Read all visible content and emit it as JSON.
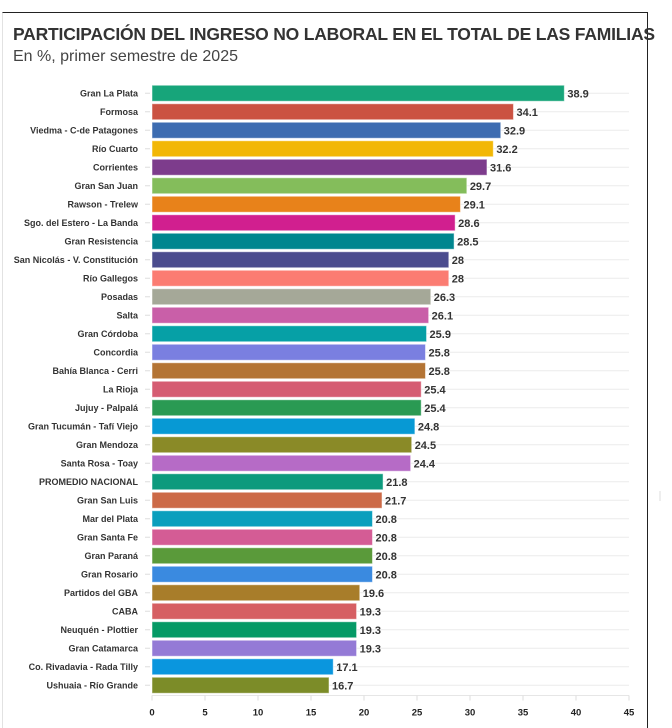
{
  "chart_data": {
    "type": "bar",
    "orientation": "horizontal",
    "title": "PARTICIPACIÓN DEL INGRESO NO LABORAL EN EL TOTAL DE LAS FAMILIAS",
    "subtitle": "En %, primer semestre de 2025",
    "xlabel": "",
    "ylabel": "",
    "xlim": [
      0,
      45
    ],
    "xticks": [
      0,
      5,
      10,
      15,
      20,
      25,
      30,
      35,
      40,
      45
    ],
    "grid": true,
    "legend": "none",
    "categories": [
      "Gran La Plata",
      "Formosa",
      "Viedma - C-de Patagones",
      "Río Cuarto",
      "Corrientes",
      "Gran San Juan",
      "Rawson - Trelew",
      "Sgo. del Estero - La Banda",
      "Gran Resistencia",
      "San Nicolás - V. Constitución",
      "Río Gallegos",
      "Posadas",
      "Salta",
      "Gran Córdoba",
      "Concordia",
      "Bahía Blanca - Cerri",
      "La Rioja",
      "Jujuy - Palpalá",
      "Gran Tucumán - Tafí Viejo",
      "Gran Mendoza",
      "Santa Rosa - Toay",
      "PROMEDIO NACIONAL",
      "Gran San Luis",
      "Mar del Plata",
      "Gran Santa Fe",
      "Gran Paraná",
      "Gran Rosario",
      "Partidos del GBA",
      "CABA",
      "Neuquén - Plottier",
      "Gran Catamarca",
      "Co. Rivadavia - Rada Tilly",
      "Ushuaia - Río Grande"
    ],
    "values": [
      38.9,
      34.1,
      32.9,
      32.2,
      31.6,
      29.7,
      29.1,
      28.6,
      28.5,
      28,
      28,
      26.3,
      26.1,
      25.9,
      25.8,
      25.8,
      25.4,
      25.4,
      24.8,
      24.5,
      24.4,
      21.8,
      21.7,
      20.8,
      20.8,
      20.8,
      20.8,
      19.6,
      19.3,
      19.3,
      19.3,
      17.1,
      16.7
    ],
    "value_labels": [
      "38.9",
      "34.1",
      "32.9",
      "32.2",
      "31.6",
      "29.7",
      "29.1",
      "28.6",
      "28.5",
      "28",
      "28",
      "26.3",
      "26.1",
      "25.9",
      "25.8",
      "25.8",
      "25.4",
      "25.4",
      "24.8",
      "24.5",
      "24.4",
      "21.8",
      "21.7",
      "20.8",
      "20.8",
      "20.8",
      "20.8",
      "19.6",
      "19.3",
      "19.3",
      "19.3",
      "17.1",
      "16.7"
    ],
    "colors": [
      "#17a57a",
      "#cb5242",
      "#3d6cb1",
      "#f2b705",
      "#7d3c8c",
      "#84bd5b",
      "#e8821a",
      "#d11f8f",
      "#01868f",
      "#4b4c8e",
      "#fb7c72",
      "#a5a898",
      "#c95fa8",
      "#06a0a6",
      "#7a7fe0",
      "#b47434",
      "#d55c72",
      "#2a9a53",
      "#0799d4",
      "#8a8a27",
      "#b66bc6",
      "#0d9a7d",
      "#cc6a47",
      "#0a9fbd",
      "#d45c95",
      "#5a9a3a",
      "#3a8ae0",
      "#a87d2a",
      "#d65f63",
      "#059a66",
      "#947ad6",
      "#0a96de",
      "#7c8c28"
    ]
  }
}
